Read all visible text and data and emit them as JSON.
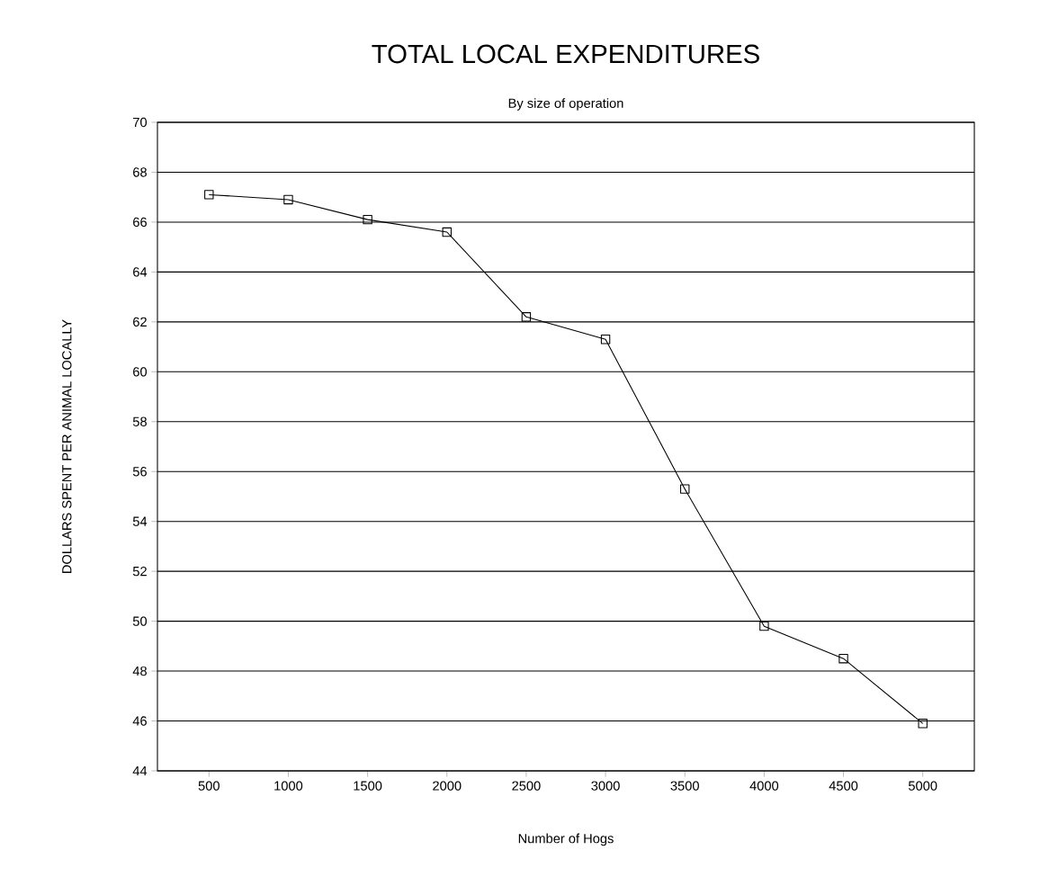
{
  "chart_data": {
    "type": "line",
    "title": "TOTAL LOCAL EXPENDITURES",
    "subtitle": "By size of operation",
    "xlabel": "Number of Hogs",
    "ylabel": "DOLLARS SPENT PER ANIMAL LOCALLY",
    "categories": [
      "500",
      "1000",
      "1500",
      "2000",
      "2500",
      "3000",
      "3500",
      "4000",
      "4500",
      "5000"
    ],
    "series": [
      {
        "color": "#000000",
        "values": [
          67.1,
          66.9,
          66.1,
          65.6,
          62.2,
          61.3,
          55.3,
          49.8,
          48.5,
          45.9
        ]
      }
    ],
    "ylim": [
      44,
      70
    ],
    "yticks": [
      44,
      46,
      48,
      50,
      52,
      54,
      56,
      58,
      60,
      62,
      64,
      66,
      68,
      70
    ],
    "grid": "y",
    "marker": "square",
    "line_style": "solid"
  }
}
